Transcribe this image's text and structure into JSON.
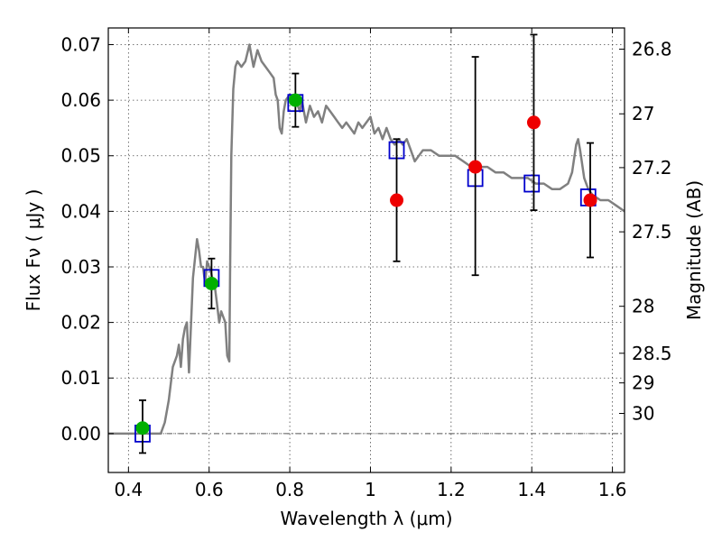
{
  "chart_data": {
    "type": "scatter",
    "xlabel": "Wavelength  λ (μm)",
    "ylabel": "Flux  Fν  ( μJy )",
    "y2label": "Magnitude (AB)",
    "xlim": [
      0.35,
      1.63
    ],
    "ylim": [
      -0.007,
      0.073
    ],
    "x_ticks": [
      0.4,
      0.6,
      0.8,
      1.0,
      1.2,
      1.4,
      1.6
    ],
    "x_tick_labels": [
      "0.4",
      "0.6",
      "0.8",
      "1",
      "1.2",
      "1.4",
      "1.6"
    ],
    "y_ticks": [
      0.0,
      0.01,
      0.02,
      0.03,
      0.04,
      0.05,
      0.06,
      0.07
    ],
    "y_tick_labels": [
      "0.00",
      "0.01",
      "0.02",
      "0.03",
      "0.04",
      "0.05",
      "0.06",
      "0.07"
    ],
    "mag_ticks": [
      26.8,
      27.0,
      27.2,
      27.5,
      28.0,
      28.5,
      29.0,
      30.0
    ],
    "mag_tick_labels": [
      "26.8",
      "27",
      "27.2",
      "27.5",
      "28",
      "28.5",
      "29",
      "30"
    ],
    "grid": true,
    "colors": {
      "model": "#808080",
      "green": "#00b000",
      "red": "#ee0000",
      "square": "#0000cc",
      "error": "#000000"
    },
    "series": [
      {
        "name": "model spectrum",
        "kind": "line",
        "x": [
          0.35,
          0.48,
          0.49,
          0.5,
          0.51,
          0.52,
          0.525,
          0.53,
          0.535,
          0.54,
          0.545,
          0.55,
          0.56,
          0.57,
          0.575,
          0.58,
          0.585,
          0.59,
          0.595,
          0.6,
          0.605,
          0.61,
          0.615,
          0.62,
          0.625,
          0.63,
          0.635,
          0.64,
          0.645,
          0.65,
          0.652,
          0.655,
          0.66,
          0.665,
          0.67,
          0.68,
          0.69,
          0.7,
          0.705,
          0.71,
          0.72,
          0.73,
          0.74,
          0.75,
          0.76,
          0.765,
          0.77,
          0.775,
          0.78,
          0.785,
          0.79,
          0.8,
          0.81,
          0.82,
          0.825,
          0.83,
          0.835,
          0.84,
          0.85,
          0.86,
          0.87,
          0.88,
          0.89,
          0.9,
          0.91,
          0.92,
          0.93,
          0.94,
          0.95,
          0.96,
          0.97,
          0.98,
          0.99,
          1.0,
          1.01,
          1.02,
          1.03,
          1.04,
          1.05,
          1.06,
          1.07,
          1.08,
          1.09,
          1.1,
          1.11,
          1.12,
          1.13,
          1.15,
          1.17,
          1.19,
          1.21,
          1.23,
          1.25,
          1.27,
          1.29,
          1.31,
          1.33,
          1.35,
          1.37,
          1.39,
          1.41,
          1.43,
          1.45,
          1.47,
          1.49,
          1.5,
          1.51,
          1.515,
          1.52,
          1.53,
          1.54,
          1.55,
          1.57,
          1.59,
          1.61,
          1.63
        ],
        "y": [
          0.0,
          0.0,
          0.002,
          0.006,
          0.012,
          0.014,
          0.016,
          0.012,
          0.017,
          0.019,
          0.02,
          0.011,
          0.028,
          0.035,
          0.033,
          0.03,
          0.03,
          0.027,
          0.031,
          0.03,
          0.029,
          0.027,
          0.026,
          0.023,
          0.02,
          0.022,
          0.021,
          0.02,
          0.014,
          0.013,
          0.03,
          0.05,
          0.062,
          0.066,
          0.067,
          0.066,
          0.067,
          0.07,
          0.068,
          0.066,
          0.069,
          0.067,
          0.066,
          0.065,
          0.064,
          0.061,
          0.06,
          0.055,
          0.054,
          0.058,
          0.06,
          0.061,
          0.06,
          0.059,
          0.058,
          0.06,
          0.058,
          0.056,
          0.059,
          0.057,
          0.058,
          0.056,
          0.059,
          0.058,
          0.057,
          0.056,
          0.055,
          0.056,
          0.055,
          0.054,
          0.056,
          0.055,
          0.056,
          0.057,
          0.054,
          0.055,
          0.053,
          0.055,
          0.053,
          0.052,
          0.053,
          0.052,
          0.053,
          0.051,
          0.049,
          0.05,
          0.051,
          0.051,
          0.05,
          0.05,
          0.05,
          0.049,
          0.048,
          0.048,
          0.048,
          0.047,
          0.047,
          0.046,
          0.046,
          0.046,
          0.045,
          0.045,
          0.044,
          0.044,
          0.045,
          0.047,
          0.052,
          0.053,
          0.051,
          0.046,
          0.044,
          0.043,
          0.042,
          0.042,
          0.041,
          0.04
        ]
      },
      {
        "name": "model photometry",
        "kind": "open-square",
        "x": [
          0.435,
          0.606,
          0.814,
          1.065,
          1.26,
          1.4,
          1.54
        ],
        "y": [
          0.0,
          0.028,
          0.0595,
          0.051,
          0.046,
          0.045,
          0.0425
        ]
      },
      {
        "name": "detections",
        "kind": "filled-circle",
        "color": "green",
        "x": [
          0.435,
          0.606,
          0.814
        ],
        "y": [
          0.001,
          0.027,
          0.06
        ],
        "yerr_low": [
          0.0045,
          0.0045,
          0.0048
        ],
        "yerr_high": [
          0.005,
          0.0045,
          0.0048
        ]
      },
      {
        "name": "upper limits / low S/N",
        "kind": "filled-circle",
        "color": "red",
        "x": [
          1.065,
          1.26,
          1.405,
          1.545
        ],
        "y": [
          0.042,
          0.048,
          0.056,
          0.042
        ],
        "yerr_low": [
          0.011,
          0.0195,
          0.0158,
          0.0103
        ],
        "yerr_high": [
          0.011,
          0.0198,
          0.0158,
          0.0103
        ]
      }
    ]
  }
}
